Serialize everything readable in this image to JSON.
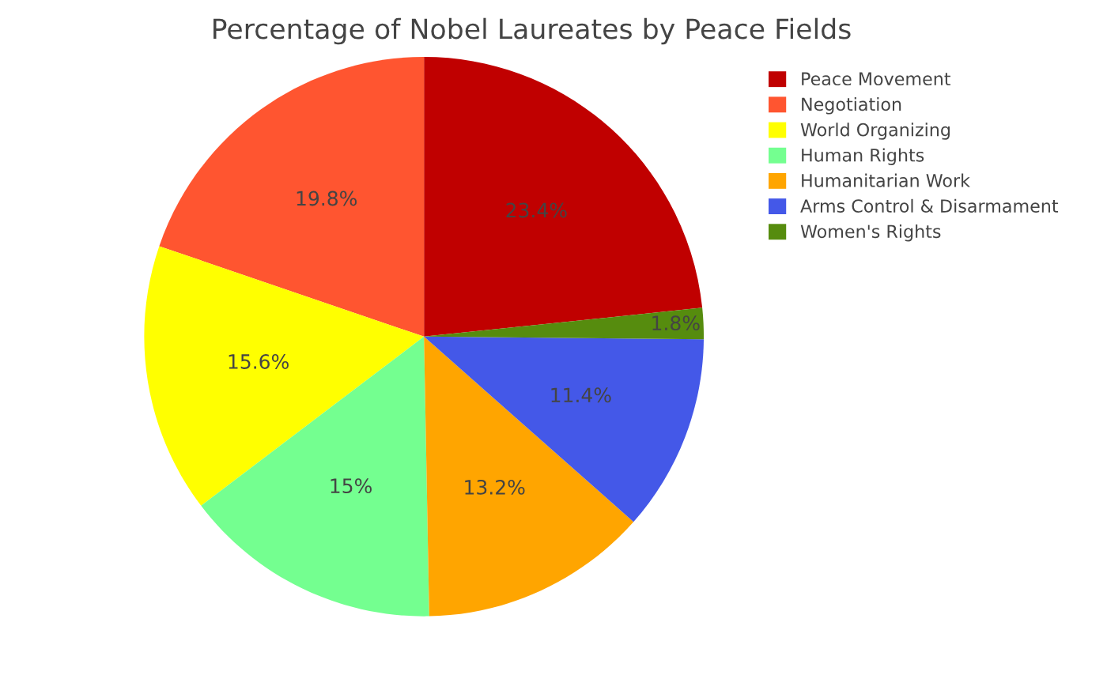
{
  "chart_data": {
    "type": "pie",
    "title": "Percentage of Nobel Laureates by Peace Fields",
    "categories": [
      "Peace Movement",
      "Negotiation",
      "World Organizing",
      "Human Rights",
      "Humanitarian Work",
      "Arms Control & Disarmament",
      "Women's Rights"
    ],
    "values": [
      23.4,
      19.8,
      15.6,
      15,
      13.2,
      11.4,
      1.8
    ],
    "colors": [
      "#c00000",
      "#ff5530",
      "#ffff00",
      "#74ff90",
      "#ffa500",
      "#4458e8",
      "#568c0e"
    ],
    "value_labels": [
      "23.4%",
      "19.8%",
      "15.6%",
      "15%",
      "13.2%",
      "11.4%",
      "1.8%"
    ],
    "legend": "top right"
  }
}
